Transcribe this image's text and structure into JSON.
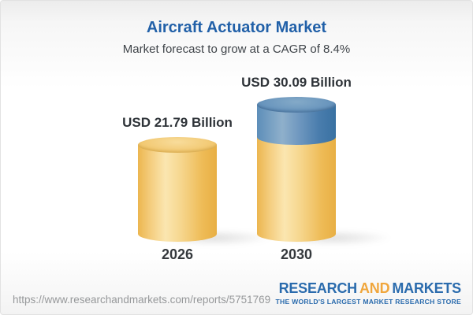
{
  "header": {
    "title": "Aircraft Actuator Market",
    "subtitle": "Market forecast to grow at a CAGR of 8.4%"
  },
  "chart_data": {
    "type": "bar",
    "variant": "3d-cylinder",
    "title": "Aircraft Actuator Market",
    "subtitle": "Market forecast to grow at a CAGR of 8.4%",
    "unit": "USD Billion",
    "cagr_pct": 8.4,
    "categories": [
      "2026",
      "2030"
    ],
    "values": [
      21.79,
      30.09
    ],
    "value_labels": [
      "USD 21.79 Billion",
      "USD 30.09 Billion"
    ],
    "series": [
      {
        "name": "base-2026-level",
        "color": "#f0c468",
        "values": [
          21.79,
          21.79
        ]
      },
      {
        "name": "growth-to-2030",
        "color": "#5788b3",
        "values": [
          0,
          8.3
        ]
      }
    ],
    "legend": "none",
    "grid": false,
    "axes": "none"
  },
  "footer": {
    "url": "https://www.researchandmarkets.com/reports/5751769",
    "logo": {
      "research": "RESEARCH",
      "and": "AND",
      "markets": "MARKETS",
      "tagline": "THE WORLD'S LARGEST MARKET RESEARCH STORE",
      "blue": "#2a6bad",
      "gold": "#f0a63c"
    }
  },
  "theme": {
    "title_blue": "#2160a8",
    "cylinder_yellow": "#f0c468",
    "cylinder_blue": "#5788b3",
    "text_dark": "#2e3338"
  }
}
